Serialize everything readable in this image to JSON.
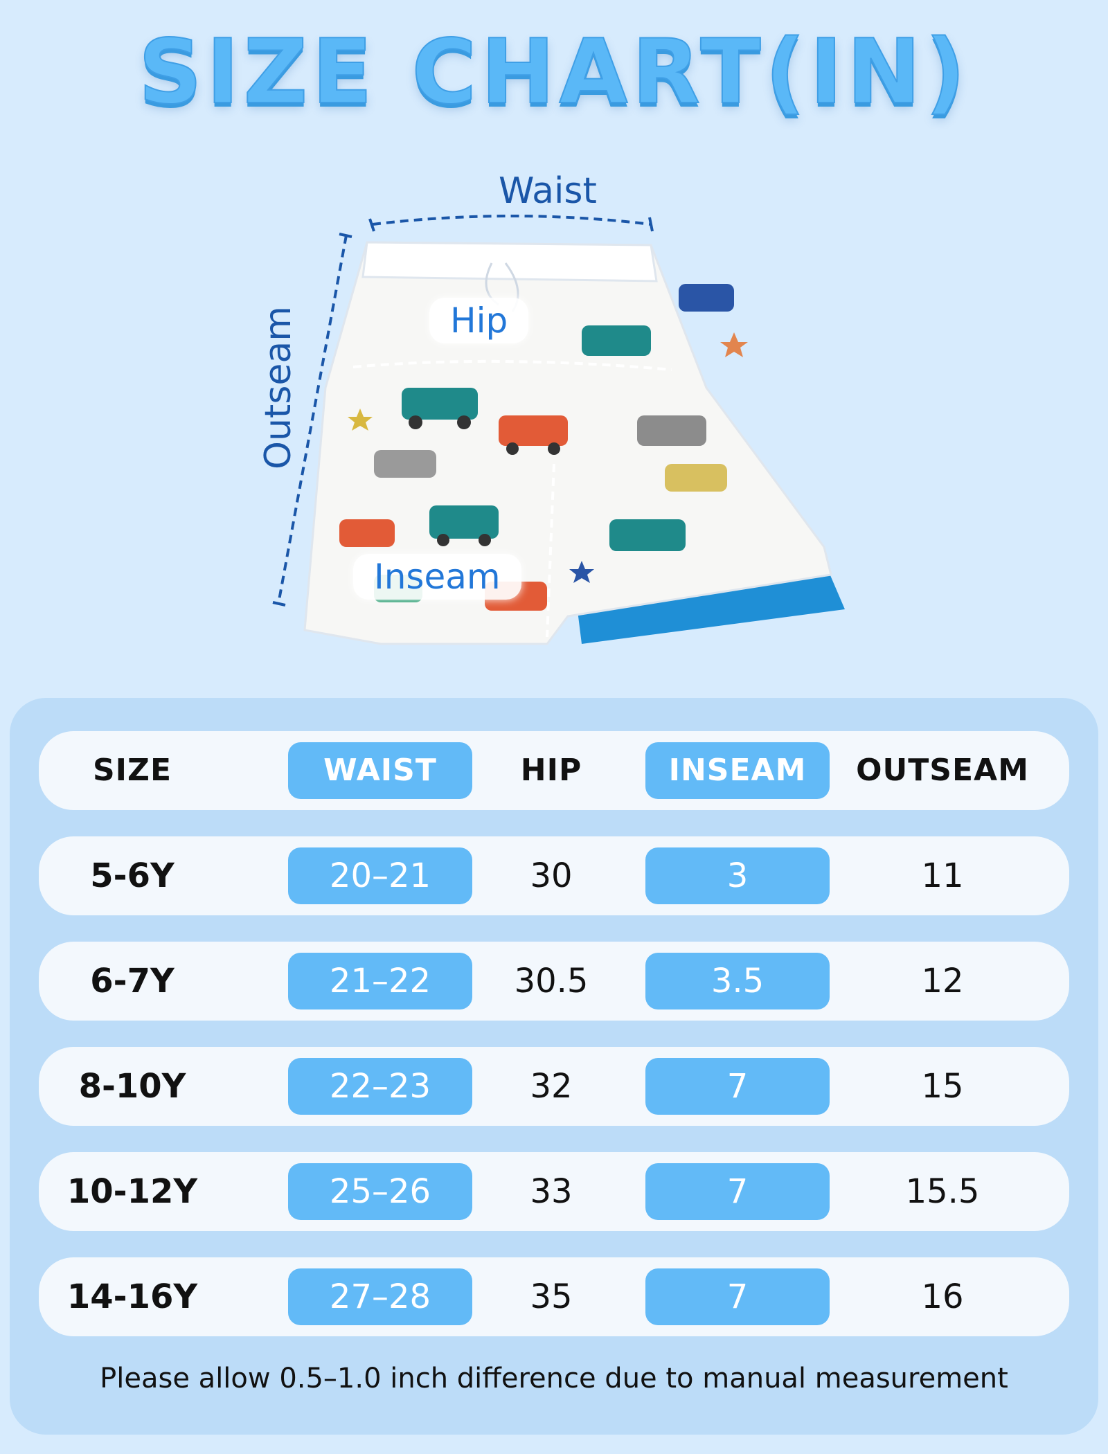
{
  "title": "SIZE CHART(IN)",
  "diagram": {
    "waist_label": "Waist",
    "hip_label": "Hip",
    "inseam_label": "Inseam",
    "outseam_label": "Outseam"
  },
  "table": {
    "headers": [
      "SIZE",
      "WAIST",
      "HIP",
      "INSEAM",
      "OUTSEAM"
    ],
    "rows": [
      [
        "5-6Y",
        "20–21",
        "30",
        "3",
        "11"
      ],
      [
        "6-7Y",
        "21–22",
        "30.5",
        "3.5",
        "12"
      ],
      [
        "8-10Y",
        "22–23",
        "32",
        "7",
        "15"
      ],
      [
        "10-12Y",
        "25–26",
        "33",
        "7",
        "15.5"
      ],
      [
        "14-16Y",
        "27–28",
        "35",
        "7",
        "16"
      ]
    ]
  },
  "note": "Please allow 0.5–1.0 inch difference due to manual measurement",
  "colors": {
    "background": "#d7ebfd",
    "accent": "#62baf7",
    "title": "#5ab8f7",
    "label": "#1a56a8"
  }
}
